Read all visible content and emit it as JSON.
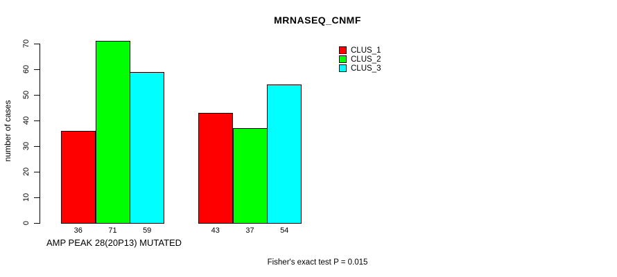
{
  "chart_data": {
    "type": "bar",
    "title": "MRNASEQ_CNMF",
    "ylabel": "number of cases",
    "xlabel": "AMP PEAK 28(20P13) MUTATED",
    "annotation": "Fisher's exact test P = 0.015",
    "categories": [
      "AMP PEAK 28(20P13) MUTATED",
      ""
    ],
    "series": [
      {
        "name": "CLUS_1",
        "color": "#ff0000",
        "values": [
          36,
          43
        ]
      },
      {
        "name": "CLUS_2",
        "color": "#00ff00",
        "values": [
          71,
          37
        ]
      },
      {
        "name": "CLUS_3",
        "color": "#00ffff",
        "values": [
          59,
          54
        ]
      }
    ],
    "yticks": [
      0,
      10,
      20,
      30,
      40,
      50,
      60,
      70
    ],
    "ylim": [
      0,
      70
    ],
    "bar_border_color": "#000000",
    "legend_position": "top-right",
    "grid": false
  }
}
